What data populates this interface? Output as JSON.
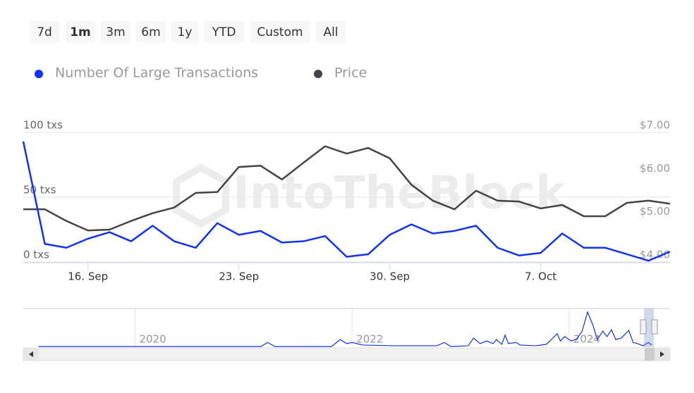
{
  "chart_data": {
    "type": "line",
    "range_buttons": [
      "7d",
      "1m",
      "3m",
      "6m",
      "1y",
      "YTD",
      "Custom",
      "All"
    ],
    "selected_range": 1,
    "watermark": "IntoTheBlock",
    "categories": [
      null,
      null,
      null,
      "16. Sep",
      null,
      null,
      null,
      null,
      null,
      null,
      "23. Sep",
      null,
      null,
      null,
      null,
      null,
      null,
      "30. Sep",
      null,
      null,
      null,
      null,
      null,
      null,
      "7. Oct",
      null,
      null,
      null,
      null,
      null,
      null
    ],
    "series": [
      {
        "name": "Number Of Large Transactions",
        "color": "#1133ee",
        "axis": "y",
        "values": [
          93,
          14,
          11,
          18,
          23,
          16,
          28,
          16,
          11,
          30,
          21,
          24,
          15,
          16,
          20,
          4,
          6,
          21,
          29,
          22,
          24,
          28,
          11,
          5,
          7,
          22,
          11,
          11,
          6,
          1,
          8
        ]
      },
      {
        "name": "Price",
        "color": "#434348",
        "axis": "y2",
        "values": [
          5.22,
          5.22,
          4.95,
          4.73,
          4.75,
          4.95,
          5.13,
          5.26,
          5.6,
          5.62,
          6.2,
          6.23,
          5.91,
          6.3,
          6.68,
          6.51,
          6.64,
          6.4,
          5.79,
          5.42,
          5.22,
          5.65,
          5.42,
          5.4,
          5.24,
          5.32,
          5.06,
          5.06,
          5.37,
          5.42,
          5.35
        ]
      }
    ],
    "ylim": [
      0,
      100
    ],
    "yticks": [
      {
        "value": 0,
        "label": "0 txs"
      },
      {
        "value": 50,
        "label": "50 txs"
      },
      {
        "value": 100,
        "label": "100 txs"
      }
    ],
    "y2lim": [
      4,
      7
    ],
    "y2ticks": [
      {
        "value": 4,
        "label": "$4.00"
      },
      {
        "value": 5,
        "label": "$5.00"
      },
      {
        "value": 6,
        "label": "$6.00"
      },
      {
        "value": 7,
        "label": "$7.00"
      }
    ],
    "grid": true,
    "navigator": {
      "xlim": [
        2018.97,
        2024.93
      ],
      "xticks": [
        2020,
        2022,
        2024
      ],
      "ylim": [
        0,
        100
      ],
      "color": "#1133ee",
      "x": [
        2019.11,
        2020.05,
        2021.16,
        2021.22,
        2021.29,
        2021.81,
        2021.89,
        2021.95,
        2022.0,
        2022.1,
        2022.39,
        2022.78,
        2022.85,
        2022.91,
        2023.07,
        2023.12,
        2023.18,
        2023.24,
        2023.3,
        2023.33,
        2023.38,
        2023.41,
        2023.44,
        2023.51,
        2023.55,
        2023.69,
        2023.79,
        2023.85,
        2023.89,
        2023.92,
        2023.96,
        2024.02,
        2024.07,
        2024.12,
        2024.17,
        2024.22,
        2024.26,
        2024.31,
        2024.35,
        2024.39,
        2024.43,
        2024.48,
        2024.55,
        2024.59,
        2024.63,
        2024.68,
        2024.73,
        2024.76
      ],
      "values": [
        0,
        0,
        0,
        11,
        0,
        0,
        19,
        8,
        11,
        4,
        2,
        2,
        11,
        0,
        2,
        23,
        8,
        15,
        8,
        19,
        6,
        31,
        8,
        11,
        4,
        2,
        6,
        23,
        35,
        15,
        27,
        15,
        21,
        42,
        94,
        58,
        19,
        42,
        27,
        46,
        19,
        23,
        44,
        11,
        8,
        2,
        11,
        4
      ]
    }
  }
}
